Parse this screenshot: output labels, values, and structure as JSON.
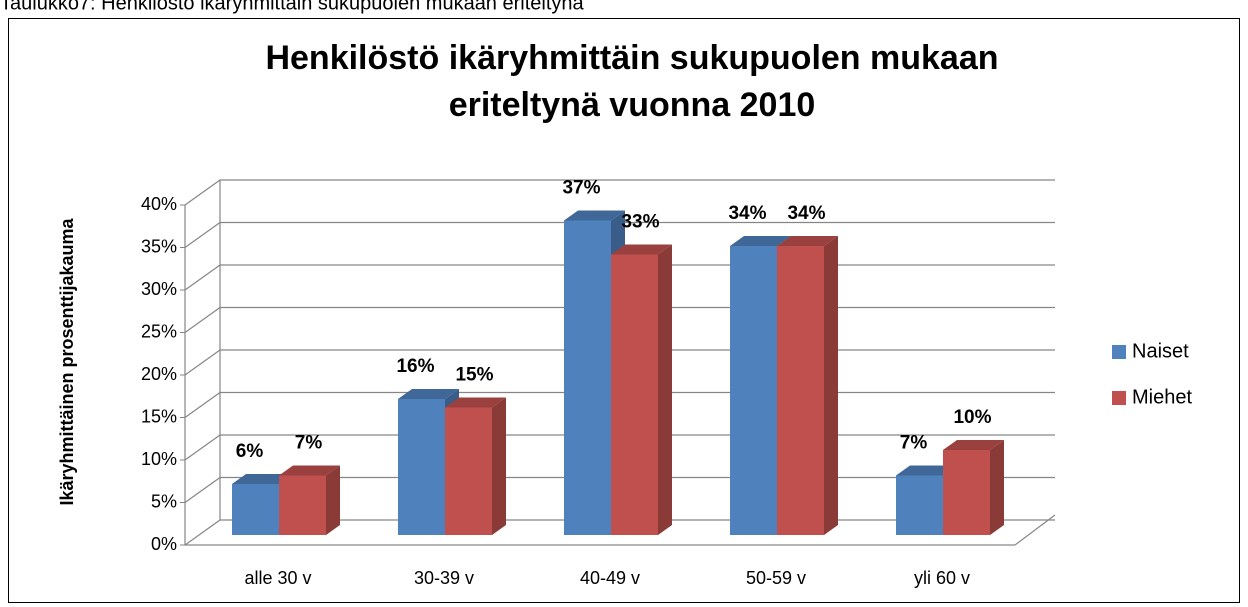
{
  "chart_data": {
    "type": "bar",
    "caption": "Taulukko7: Henkilöstö ikäryhmittäin sukupuolen mukaan eriteltynä",
    "title": "Henkilöstö ikäryhmittäin sukupuolen mukaan eriteltynä vuonna 2010",
    "y_label": "Ikäryhmittäinen prosenttijakauma",
    "categories": [
      "alle 30 v",
      "30-39 v",
      "40-49 v",
      "50-59 v",
      "yli 60 v"
    ],
    "series": [
      {
        "name": "Naiset",
        "color": "#4f81bd",
        "values": [
          6,
          16,
          37,
          34,
          7
        ],
        "value_labels": [
          "6%",
          "16%",
          "37%",
          "34%",
          "7%"
        ]
      },
      {
        "name": "Miehet",
        "color": "#c0504d",
        "values": [
          7,
          15,
          33,
          34,
          10
        ],
        "value_labels": [
          "7%",
          "15%",
          "33%",
          "34%",
          "10%"
        ]
      }
    ],
    "ylim": [
      0,
      40
    ],
    "yticks": [
      {
        "value": 0,
        "label": "0%"
      },
      {
        "value": 5,
        "label": "5%"
      },
      {
        "value": 10,
        "label": "10%"
      },
      {
        "value": 15,
        "label": "15%"
      },
      {
        "value": 20,
        "label": "20%"
      },
      {
        "value": 25,
        "label": "25%"
      },
      {
        "value": 30,
        "label": "30%"
      },
      {
        "value": 35,
        "label": "35%"
      },
      {
        "value": 40,
        "label": "40%"
      }
    ],
    "grid": true,
    "legend": "right"
  }
}
